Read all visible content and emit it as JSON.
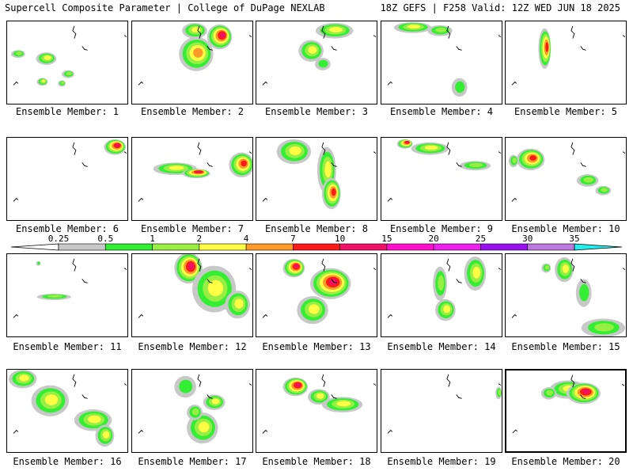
{
  "header": {
    "left_title": "Supercell Composite Parameter | College of DuPage NEXLAB",
    "right_title": "18Z GEFS | F258 Valid: 12Z WED JUN 18 2025"
  },
  "legend": {
    "levels": [
      0.25,
      0.5,
      1,
      2,
      4,
      7,
      10,
      15,
      20,
      25,
      30,
      35
    ],
    "level_labels": [
      "0.25",
      "0.5",
      "1",
      "2",
      "4",
      "7",
      "10",
      "15",
      "20",
      "25",
      "30",
      "35"
    ],
    "colors": [
      "#c8c8c8",
      "#33ee33",
      "#99ee44",
      "#ffff44",
      "#ff9a2a",
      "#ff1a1a",
      "#ee1166",
      "#ff11cc",
      "#ee22ee",
      "#9911ee",
      "#bb77dd",
      "#22eeee"
    ]
  },
  "panel_label_prefix": "Ensemble Member:",
  "members": [
    {
      "id": "1",
      "blobs": [
        [
          14,
          42,
          9,
          5,
          2
        ],
        [
          50,
          48,
          13,
          8,
          3
        ],
        [
          45,
          78,
          7,
          5,
          3
        ],
        [
          78,
          68,
          8,
          5,
          2
        ],
        [
          70,
          80,
          5,
          4,
          2
        ]
      ]
    },
    {
      "id": "2",
      "blobs": [
        [
          80,
          12,
          16,
          10,
          3
        ],
        [
          112,
          20,
          16,
          16,
          6
        ],
        [
          82,
          42,
          22,
          22,
          4
        ]
      ]
    },
    {
      "id": "3",
      "blobs": [
        [
          100,
          12,
          24,
          10,
          3
        ],
        [
          70,
          38,
          16,
          14,
          3
        ],
        [
          85,
          55,
          10,
          8,
          1
        ]
      ]
    },
    {
      "id": "4",
      "blobs": [
        [
          40,
          8,
          24,
          7,
          3
        ],
        [
          75,
          12,
          16,
          7,
          2
        ],
        [
          100,
          85,
          10,
          12,
          1
        ]
      ]
    },
    {
      "id": "5",
      "blobs": [
        [
          50,
          35,
          8,
          26,
          5
        ]
      ]
    },
    {
      "id": "6",
      "blobs": [
        [
          138,
          12,
          14,
          10,
          6
        ]
      ]
    },
    {
      "id": "7",
      "blobs": [
        [
          55,
          40,
          28,
          8,
          3
        ],
        [
          82,
          46,
          18,
          6,
          6
        ],
        [
          140,
          35,
          16,
          16,
          5
        ]
      ]
    },
    {
      "id": "8",
      "blobs": [
        [
          48,
          18,
          22,
          16,
          3
        ],
        [
          90,
          42,
          12,
          30,
          3
        ],
        [
          96,
          72,
          12,
          20,
          5
        ]
      ]
    },
    {
      "id": "9",
      "blobs": [
        [
          30,
          8,
          10,
          6,
          6
        ],
        [
          62,
          14,
          24,
          8,
          3
        ],
        [
          120,
          36,
          20,
          6,
          2
        ]
      ]
    },
    {
      "id": "10",
      "blobs": [
        [
          32,
          28,
          18,
          14,
          5
        ],
        [
          10,
          30,
          6,
          8,
          2
        ],
        [
          105,
          55,
          14,
          8,
          2
        ],
        [
          125,
          68,
          10,
          6,
          2
        ]
      ]
    },
    {
      "id": "11",
      "blobs": [
        [
          60,
          55,
          22,
          4,
          2
        ],
        [
          40,
          12,
          3,
          3,
          1
        ]
      ]
    },
    {
      "id": "12",
      "blobs": [
        [
          72,
          18,
          18,
          20,
          6
        ],
        [
          105,
          45,
          28,
          30,
          3
        ],
        [
          135,
          65,
          16,
          18,
          3
        ]
      ]
    },
    {
      "id": "13",
      "blobs": [
        [
          48,
          18,
          14,
          12,
          6
        ],
        [
          95,
          38,
          26,
          20,
          6
        ],
        [
          72,
          72,
          20,
          18,
          3
        ]
      ]
    },
    {
      "id": "14",
      "blobs": [
        [
          75,
          38,
          9,
          22,
          2
        ],
        [
          82,
          72,
          13,
          14,
          3
        ],
        [
          120,
          25,
          14,
          22,
          3
        ]
      ]
    },
    {
      "id": "15",
      "blobs": [
        [
          75,
          20,
          12,
          16,
          3
        ],
        [
          100,
          50,
          10,
          18,
          1
        ],
        [
          125,
          95,
          28,
          12,
          2
        ],
        [
          52,
          18,
          6,
          6,
          2
        ]
      ]
    },
    {
      "id": "16",
      "blobs": [
        [
          20,
          12,
          18,
          12,
          3
        ],
        [
          55,
          40,
          24,
          20,
          3
        ],
        [
          110,
          65,
          24,
          14,
          3
        ],
        [
          125,
          85,
          12,
          14,
          3
        ]
      ]
    },
    {
      "id": "17",
      "blobs": [
        [
          68,
          22,
          14,
          14,
          1
        ],
        [
          105,
          42,
          14,
          10,
          3
        ],
        [
          90,
          75,
          20,
          20,
          3
        ],
        [
          80,
          55,
          10,
          10,
          2
        ]
      ]
    },
    {
      "id": "18",
      "blobs": [
        [
          50,
          22,
          16,
          12,
          6
        ],
        [
          80,
          35,
          14,
          10,
          3
        ],
        [
          110,
          45,
          26,
          10,
          3
        ]
      ]
    },
    {
      "id": "19",
      "blobs": [
        [
          150,
          30,
          4,
          8,
          2
        ]
      ]
    },
    {
      "id": "20",
      "blobs": [
        [
          80,
          25,
          24,
          12,
          3
        ],
        [
          100,
          30,
          22,
          14,
          6
        ],
        [
          55,
          30,
          10,
          8,
          2
        ]
      ]
    }
  ]
}
